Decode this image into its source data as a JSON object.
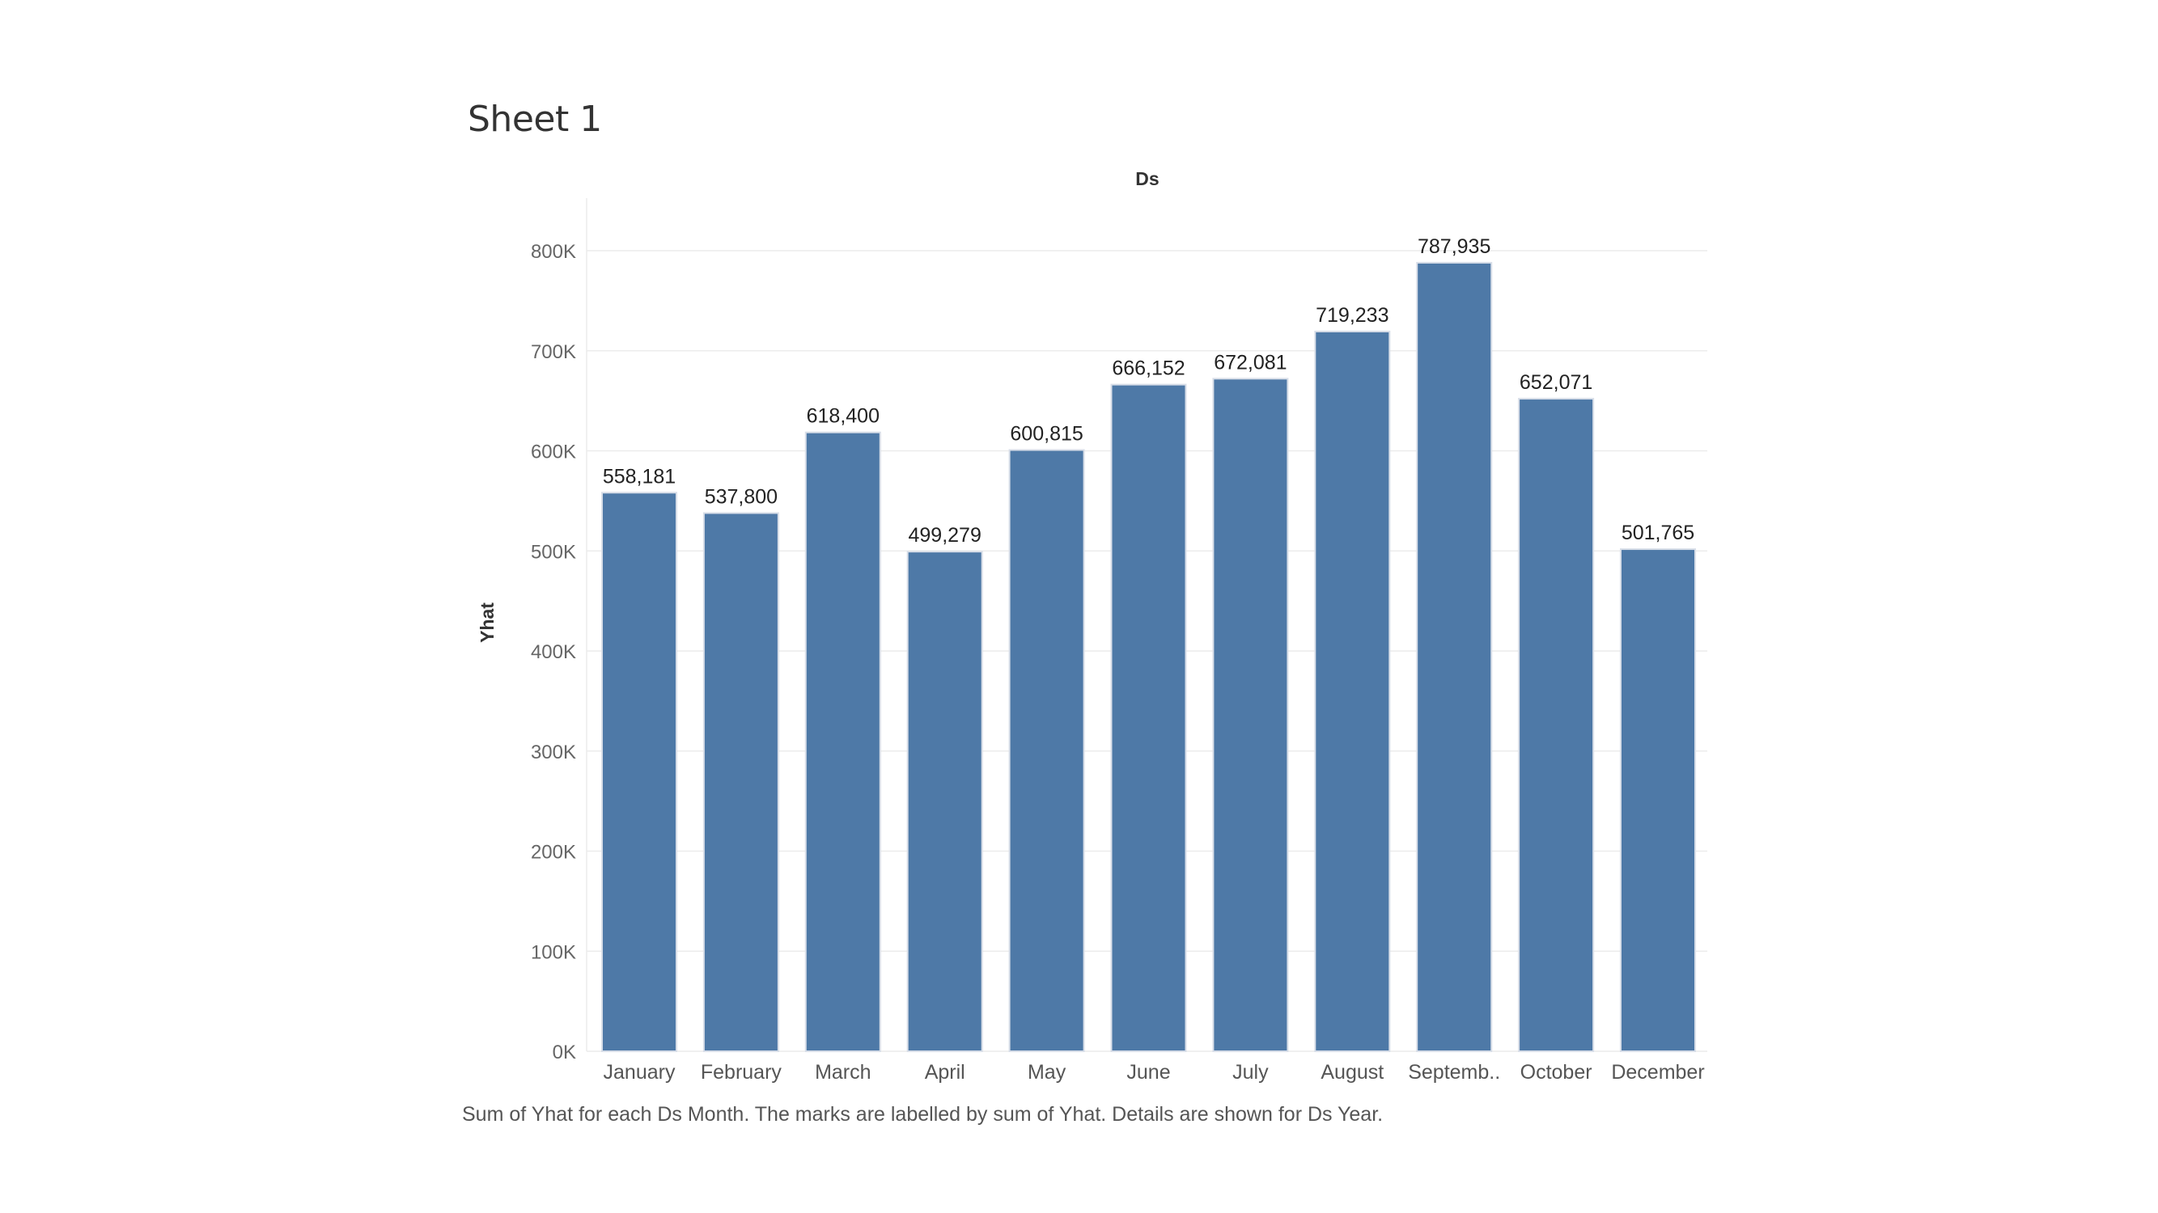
{
  "sheet": {
    "title": "Sheet 1",
    "caption": "Sum of Yhat for each Ds Month.  The marks are labelled by sum of Yhat.  Details are shown for Ds Year."
  },
  "chart_data": {
    "type": "bar",
    "title": "Ds",
    "xlabel": "",
    "ylabel": "Yhat",
    "categories": [
      "January",
      "February",
      "March",
      "April",
      "May",
      "June",
      "July",
      "August",
      "Septemb..",
      "October",
      "December"
    ],
    "values": [
      558181,
      537800,
      618400,
      499279,
      600815,
      666152,
      672081,
      719233,
      787935,
      652071,
      501765
    ],
    "value_labels": [
      "558,181",
      "537,800",
      "618,400",
      "499,279",
      "600,815",
      "666,152",
      "672,081",
      "719,233",
      "787,935",
      "652,071",
      "501,765"
    ],
    "yticks": [
      0,
      100000,
      200000,
      300000,
      400000,
      500000,
      600000,
      700000,
      800000
    ],
    "ytick_labels": [
      "0K",
      "100K",
      "200K",
      "300K",
      "400K",
      "500K",
      "600K",
      "700K",
      "800K"
    ],
    "ylim": [
      0,
      800000
    ],
    "grid": true,
    "bar_color": "#4e79a7"
  }
}
